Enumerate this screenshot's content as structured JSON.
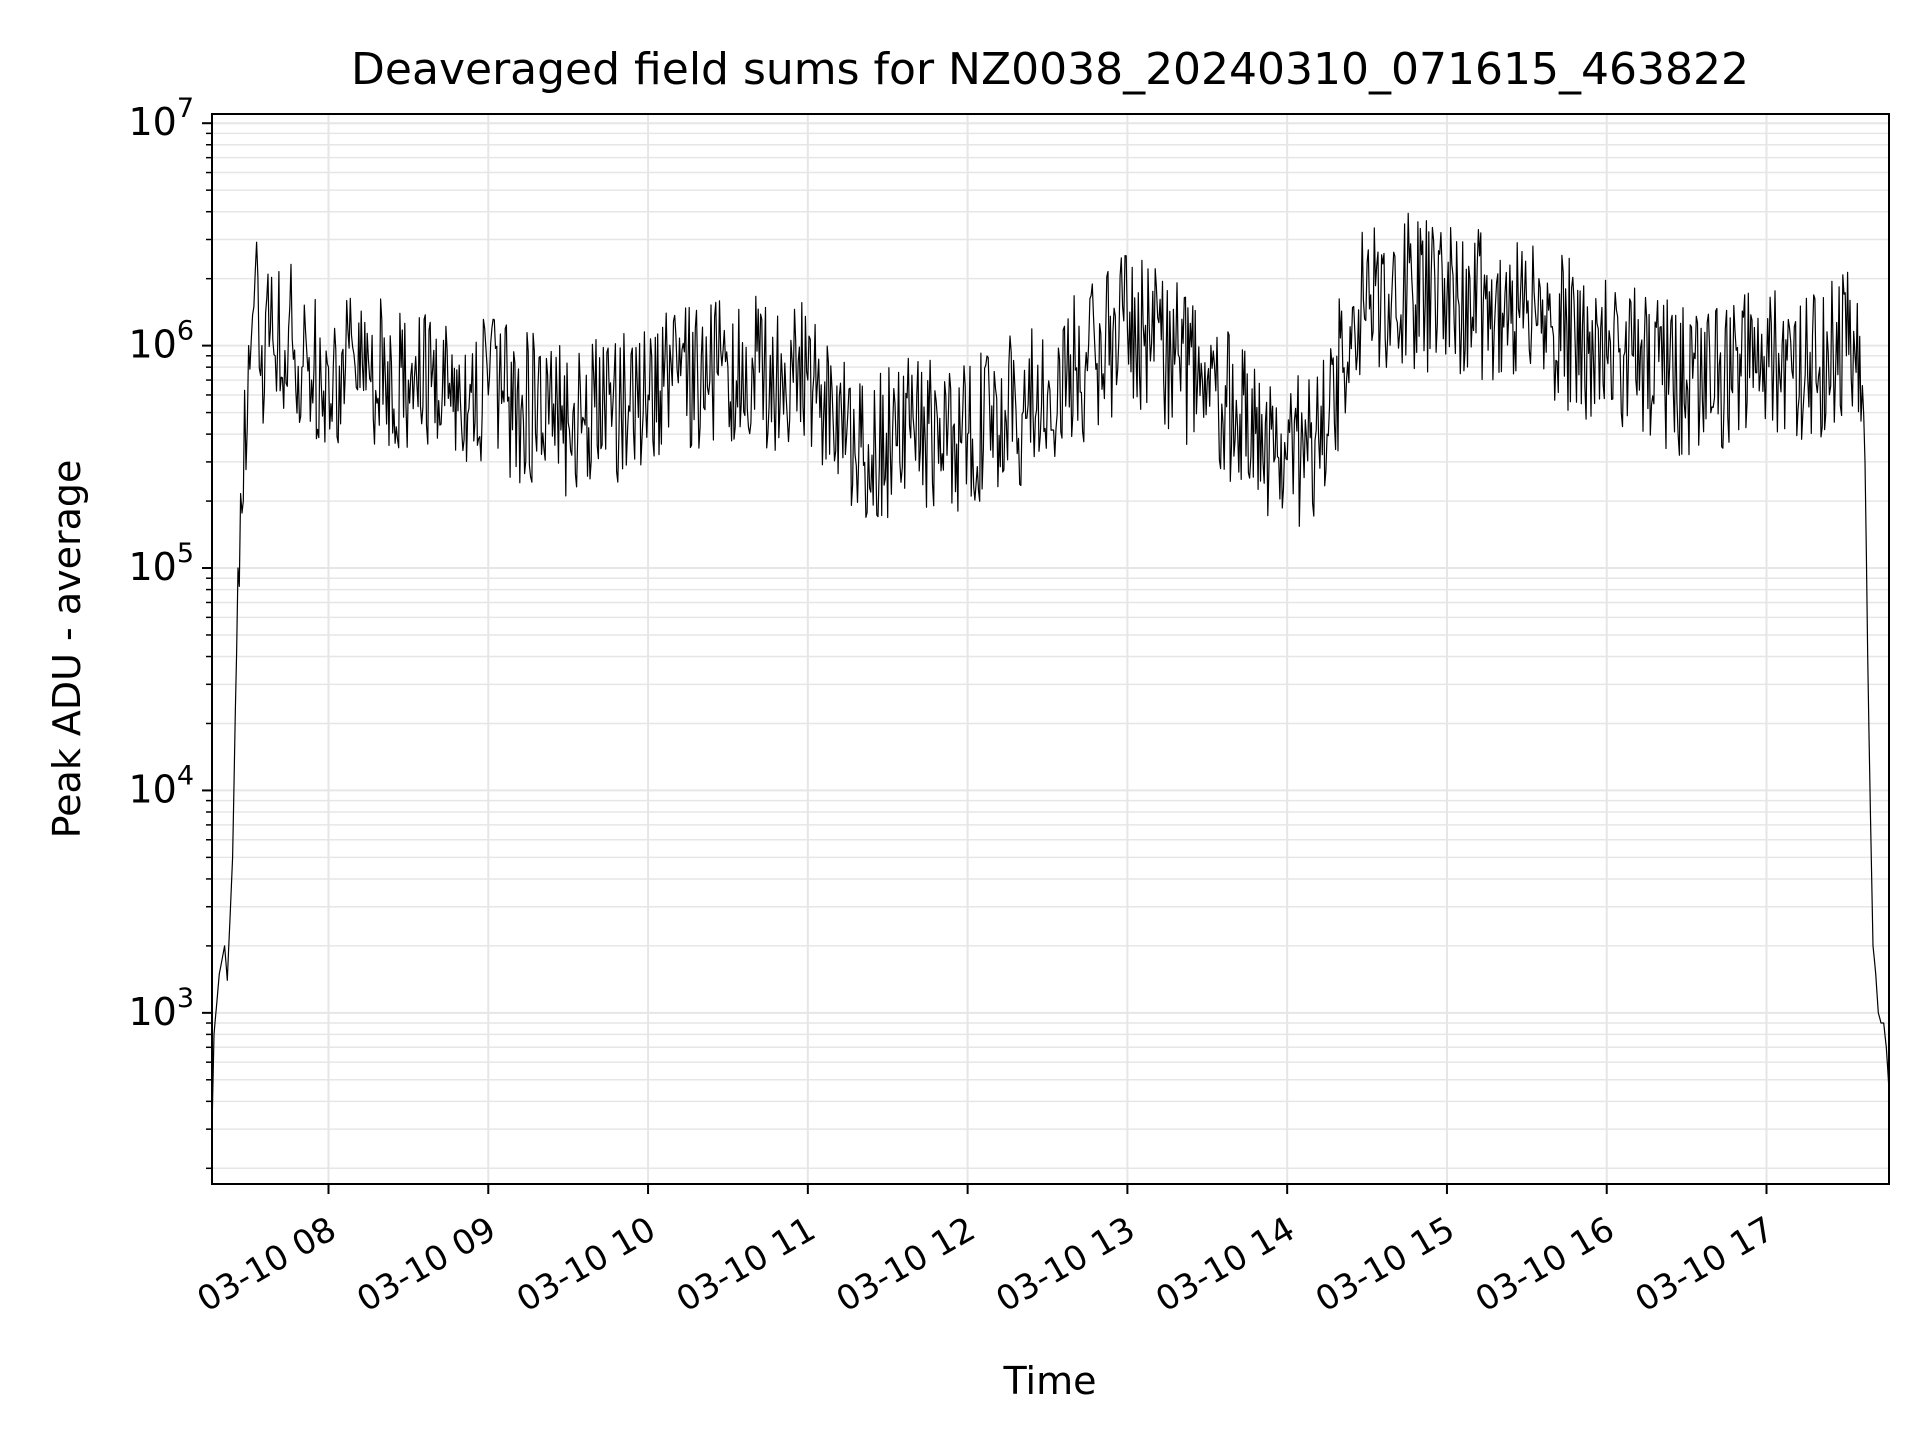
{
  "chart_data": {
    "type": "line",
    "title": "Deaveraged field sums for NZ0038_20240310_071615_463822",
    "xlabel": "Time",
    "ylabel": "Peak ADU - average",
    "yscale": "log",
    "ylim": [
      170,
      11000000
    ],
    "xlim": [
      "2024-03-10 07:16:15",
      "2024-03-10 17:46:00"
    ],
    "grid": true,
    "grid_minor": true,
    "colors": {
      "line": "#000000",
      "grid": "#e6e6e6",
      "axes": "#000000"
    },
    "x_ticks": [
      "03-10 08",
      "03-10 09",
      "03-10 10",
      "03-10 11",
      "03-10 12",
      "03-10 13",
      "03-10 14",
      "03-10 15",
      "03-10 16",
      "03-10 17"
    ],
    "y_ticks": [
      {
        "base": "10",
        "exp": "3",
        "value": 1000
      },
      {
        "base": "10",
        "exp": "4",
        "value": 10000
      },
      {
        "base": "10",
        "exp": "5",
        "value": 100000
      },
      {
        "base": "10",
        "exp": "6",
        "value": 1000000
      },
      {
        "base": "10",
        "exp": "7",
        "value": 10000000
      }
    ],
    "series": [
      {
        "color": "#000000",
        "x": [
          "2024-03-10 07:16:15",
          "2024-03-10 07:17:00",
          "2024-03-10 07:19:00",
          "2024-03-10 07:21:00",
          "2024-03-10 07:22:00",
          "2024-03-10 07:24:00",
          "2024-03-10 07:26:00",
          "2024-03-10 07:28:00",
          "2024-03-10 07:30:00",
          "2024-03-10 07:32:00",
          "2024-03-10 07:35:00",
          "2024-03-10 07:40:00",
          "2024-03-10 07:45:00",
          "2024-03-10 07:50:00",
          "2024-03-10 08:00:00",
          "2024-03-10 08:30:00",
          "2024-03-10 09:00:00",
          "2024-03-10 09:30:00",
          "2024-03-10 10:00:00",
          "2024-03-10 10:30:00",
          "2024-03-10 11:00:00",
          "2024-03-10 11:20:00",
          "2024-03-10 11:40:00",
          "2024-03-10 12:00:00",
          "2024-03-10 12:30:00",
          "2024-03-10 13:00:00",
          "2024-03-10 13:30:00",
          "2024-03-10 13:55:00",
          "2024-03-10 14:15:00",
          "2024-03-10 14:25:00",
          "2024-03-10 14:45:00",
          "2024-03-10 15:00:00",
          "2024-03-10 15:30:00",
          "2024-03-10 16:00:00",
          "2024-03-10 16:30:00",
          "2024-03-10 17:00:00",
          "2024-03-10 17:20:00",
          "2024-03-10 17:35:00",
          "2024-03-10 17:37:00",
          "2024-03-10 17:38:00",
          "2024-03-10 17:39:00",
          "2024-03-10 17:40:00",
          "2024-03-10 17:41:00",
          "2024-03-10 17:42:00",
          "2024-03-10 17:43:00",
          "2024-03-10 17:44:00",
          "2024-03-10 17:45:00",
          "2024-03-10 17:46:00"
        ],
        "y": [
          300,
          800,
          1500,
          2000,
          1400,
          5000,
          100000,
          200000,
          1000000,
          1500000,
          1000000,
          900000,
          1200000,
          800000,
          800000,
          700000,
          600000,
          450000,
          600000,
          800000,
          700000,
          350000,
          400000,
          400000,
          600000,
          1200000,
          700000,
          300000,
          400000,
          1500000,
          1800000,
          1600000,
          1400000,
          900000,
          700000,
          800000,
          800000,
          1100000,
          300000,
          40000,
          8000,
          2000,
          1500,
          1000,
          900,
          900,
          700,
          450
        ]
      }
    ]
  }
}
